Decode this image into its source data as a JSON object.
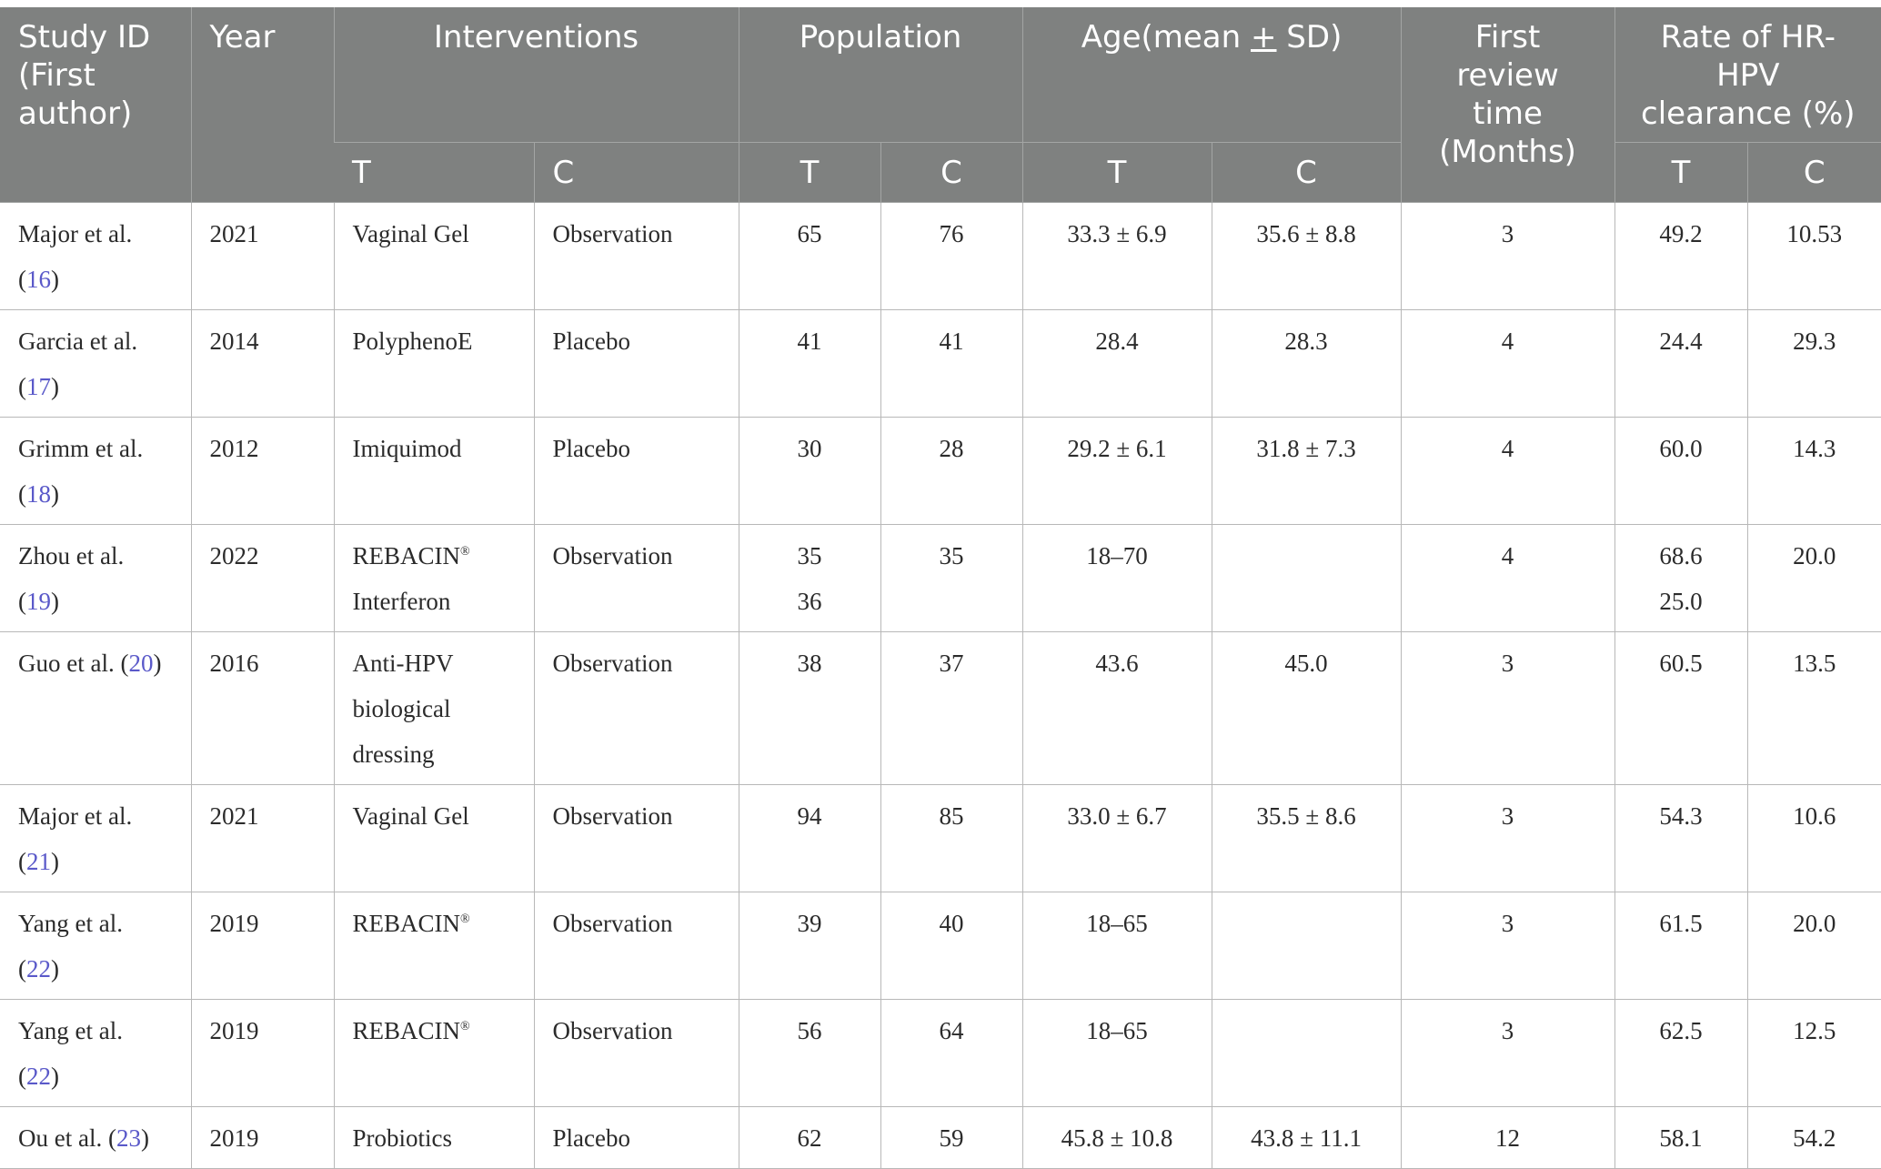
{
  "header": {
    "study_id": [
      "Study ID",
      "(First",
      "author)"
    ],
    "year": "Year",
    "interventions": "Interventions",
    "population": "Population",
    "age_prefix": "Age(mean ",
    "age_pm": "+",
    "age_suffix": " SD)",
    "first_review": [
      "First",
      "review",
      "time",
      "(Months)"
    ],
    "rate": [
      "Rate of HR-",
      "HPV",
      "clearance (%)"
    ],
    "t": "T",
    "c": "C"
  },
  "rows": [
    {
      "author": "Major et al.",
      "ref": "16",
      "ref_newline": true,
      "year": "2021",
      "int_t": [
        "Vaginal Gel"
      ],
      "int_c": "Observation",
      "pop_t": [
        "65"
      ],
      "pop_c": "76",
      "age_t": "33.3 ± 6.9",
      "age_c": "35.6 ± 8.8",
      "review": "3",
      "rate_t": [
        "49.2"
      ],
      "rate_c": "10.53"
    },
    {
      "author": "Garcia et al.",
      "ref": "17",
      "ref_newline": true,
      "year": "2014",
      "int_t": [
        "PolyphenoE"
      ],
      "int_c": "Placebo",
      "pop_t": [
        "41"
      ],
      "pop_c": "41",
      "age_t": "28.4",
      "age_c": "28.3",
      "review": "4",
      "rate_t": [
        "24.4"
      ],
      "rate_c": "29.3"
    },
    {
      "author": "Grimm et al.",
      "ref": "18",
      "ref_newline": true,
      "year": "2012",
      "int_t": [
        "Imiquimod"
      ],
      "int_c": "Placebo",
      "pop_t": [
        "30"
      ],
      "pop_c": "28",
      "age_t": "29.2 ± 6.1",
      "age_c": "31.8 ± 7.3",
      "review": "4",
      "rate_t": [
        "60.0"
      ],
      "rate_c": "14.3"
    },
    {
      "author": "Zhou et al.",
      "ref": "19",
      "ref_newline": true,
      "year": "2022",
      "int_t": [
        "REBACIN®",
        "Interferon"
      ],
      "int_c": "Observation",
      "pop_t": [
        "35",
        "36"
      ],
      "pop_c": "35",
      "age_t": "18–70",
      "age_c": "",
      "review": "4",
      "rate_t": [
        "68.6",
        "25.0"
      ],
      "rate_c": "20.0"
    },
    {
      "author": "Guo et al.",
      "ref": "20",
      "ref_newline": false,
      "year": "2016",
      "int_t": [
        "Anti-HPV",
        "biological",
        "dressing"
      ],
      "int_c": "Observation",
      "pop_t": [
        "38"
      ],
      "pop_c": "37",
      "age_t": "43.6",
      "age_c": "45.0",
      "review": "3",
      "rate_t": [
        "60.5"
      ],
      "rate_c": "13.5"
    },
    {
      "author": "Major et al.",
      "ref": "21",
      "ref_newline": true,
      "year": "2021",
      "int_t": [
        "Vaginal Gel"
      ],
      "int_c": "Observation",
      "pop_t": [
        "94"
      ],
      "pop_c": "85",
      "age_t": "33.0 ± 6.7",
      "age_c": "35.5 ± 8.6",
      "review": "3",
      "rate_t": [
        "54.3"
      ],
      "rate_c": "10.6"
    },
    {
      "author": "Yang et al.",
      "ref": "22",
      "ref_newline": true,
      "year": "2019",
      "int_t": [
        "REBACIN®"
      ],
      "int_c": "Observation",
      "pop_t": [
        "39"
      ],
      "pop_c": "40",
      "age_t": "18–65",
      "age_c": "",
      "review": "3",
      "rate_t": [
        "61.5"
      ],
      "rate_c": "20.0"
    },
    {
      "author": "Yang et al.",
      "ref": "22",
      "ref_newline": true,
      "year": "2019",
      "int_t": [
        "REBACIN®"
      ],
      "int_c": "Observation",
      "pop_t": [
        "56"
      ],
      "pop_c": "64",
      "age_t": "18–65",
      "age_c": "",
      "review": "3",
      "rate_t": [
        "62.5"
      ],
      "rate_c": "12.5"
    },
    {
      "author": "Ou et al.",
      "ref": "23",
      "ref_newline": false,
      "year": "2019",
      "int_t": [
        "Probiotics"
      ],
      "int_c": "Placebo",
      "pop_t": [
        "62"
      ],
      "pop_c": "59",
      "age_t": "45.8 ± 10.8",
      "age_c": "43.8 ± 11.1",
      "review": "12",
      "rate_t": [
        "58.1"
      ],
      "rate_c": "54.2"
    }
  ]
}
